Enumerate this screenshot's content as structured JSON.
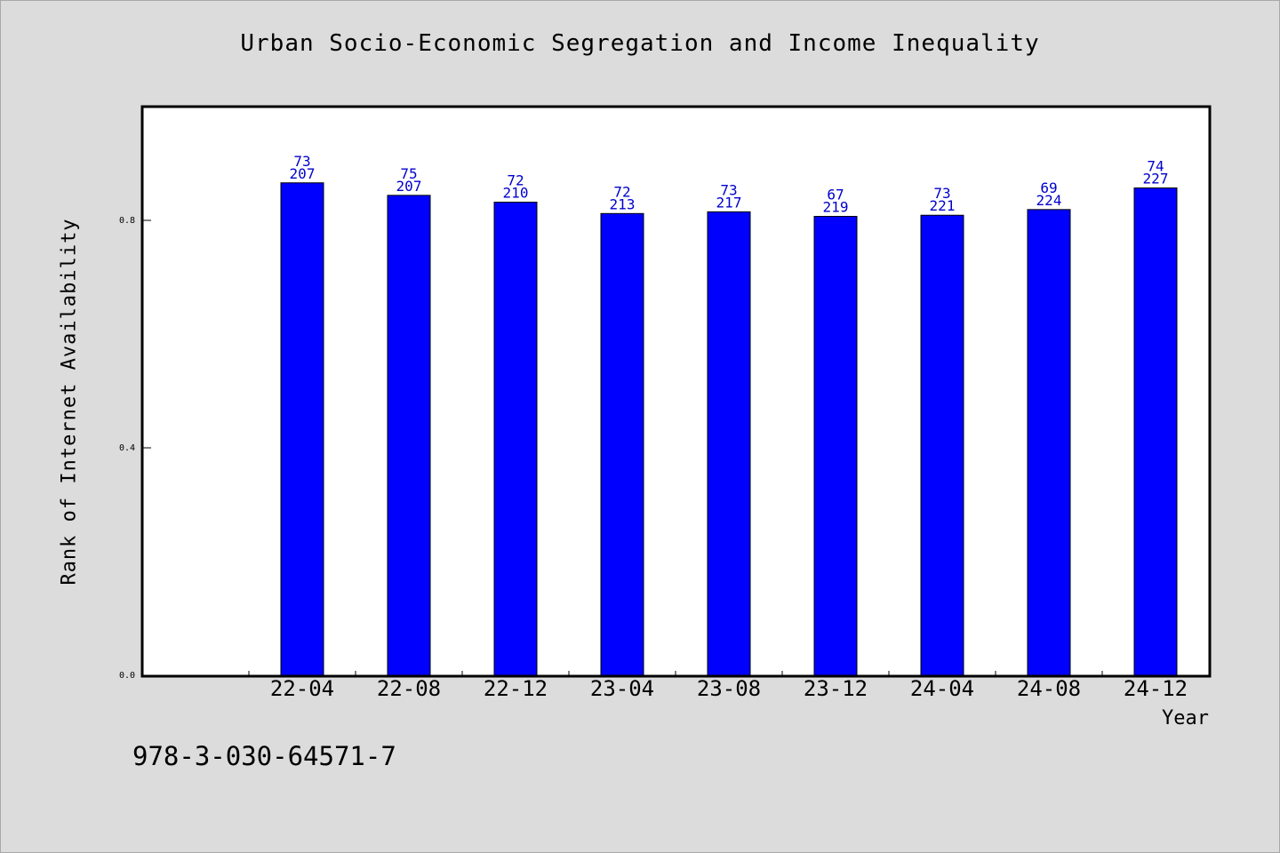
{
  "chart_data": {
    "type": "bar",
    "title": "Urban Socio-Economic Segregation and Income Inequality",
    "xlabel": "Year",
    "ylabel": "Rank of Internet Availability",
    "categories": [
      "22-04",
      "22-08",
      "22-12",
      "23-04",
      "23-08",
      "23-12",
      "24-04",
      "24-08",
      "24-12"
    ],
    "values": [
      0.866,
      0.844,
      0.832,
      0.812,
      0.815,
      0.807,
      0.809,
      0.819,
      0.857
    ],
    "bar_labels_top": [
      "73",
      "75",
      "72",
      "72",
      "73",
      "67",
      "73",
      "69",
      "74"
    ],
    "bar_labels_bottom": [
      "207",
      "207",
      "210",
      "213",
      "217",
      "219",
      "221",
      "224",
      "227"
    ],
    "yticks": [
      "0.0",
      "0.4",
      "0.8"
    ],
    "ytick_values": [
      0.0,
      0.4,
      0.8
    ],
    "ylim": [
      0,
      1.0
    ],
    "grid": false,
    "legend": "none",
    "bar_color": "#0000ff",
    "label_color": "#0000cc"
  },
  "footer": {
    "isbn": "978-3-030-64571-7"
  }
}
